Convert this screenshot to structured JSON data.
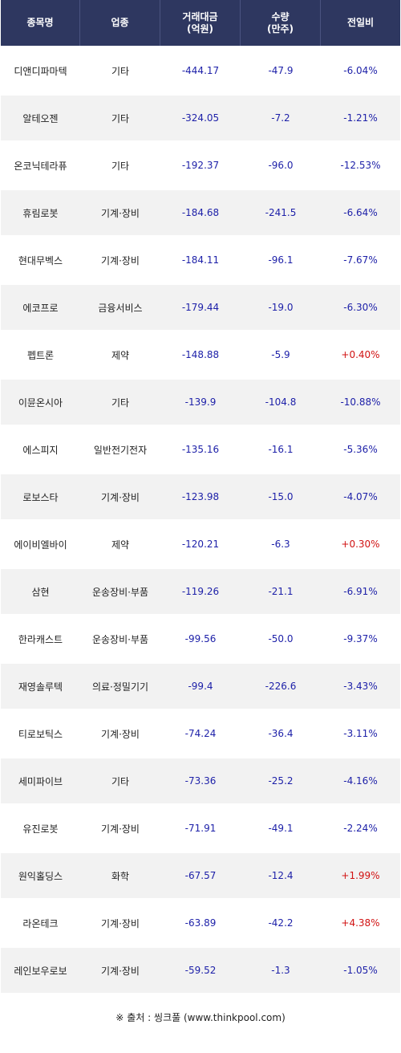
{
  "header": {
    "col_name": "종목명",
    "col_sector": "업종",
    "col_amount_line1": "거래대금",
    "col_amount_line2": "(억원)",
    "col_volume_line1": "수량",
    "col_volume_line2": "(만주)",
    "col_change": "전일비"
  },
  "colors": {
    "header_bg": "#2e3760",
    "negative": "#1c1fa8",
    "positive": "#d11212",
    "row_alt": "#f2f2f2"
  },
  "rows": [
    {
      "name": "디앤디파마텍",
      "sector": "기타",
      "amount": "-444.17",
      "volume": "-47.9",
      "change": "-6.04%",
      "dir": "neg"
    },
    {
      "name": "알테오젠",
      "sector": "기타",
      "amount": "-324.05",
      "volume": "-7.2",
      "change": "-1.21%",
      "dir": "neg"
    },
    {
      "name": "온코닉테라퓨",
      "sector": "기타",
      "amount": "-192.37",
      "volume": "-96.0",
      "change": "-12.53%",
      "dir": "neg"
    },
    {
      "name": "휴림로봇",
      "sector": "기계·장비",
      "amount": "-184.68",
      "volume": "-241.5",
      "change": "-6.64%",
      "dir": "neg"
    },
    {
      "name": "현대무벡스",
      "sector": "기계·장비",
      "amount": "-184.11",
      "volume": "-96.1",
      "change": "-7.67%",
      "dir": "neg"
    },
    {
      "name": "에코프로",
      "sector": "금융서비스",
      "amount": "-179.44",
      "volume": "-19.0",
      "change": "-6.30%",
      "dir": "neg"
    },
    {
      "name": "펩트론",
      "sector": "제약",
      "amount": "-148.88",
      "volume": "-5.9",
      "change": "+0.40%",
      "dir": "pos"
    },
    {
      "name": "이뮨온시아",
      "sector": "기타",
      "amount": "-139.9",
      "volume": "-104.8",
      "change": "-10.88%",
      "dir": "neg"
    },
    {
      "name": "에스피지",
      "sector": "일반전기전자",
      "amount": "-135.16",
      "volume": "-16.1",
      "change": "-5.36%",
      "dir": "neg"
    },
    {
      "name": "로보스타",
      "sector": "기계·장비",
      "amount": "-123.98",
      "volume": "-15.0",
      "change": "-4.07%",
      "dir": "neg"
    },
    {
      "name": "에이비엘바이",
      "sector": "제약",
      "amount": "-120.21",
      "volume": "-6.3",
      "change": "+0.30%",
      "dir": "pos"
    },
    {
      "name": "삼현",
      "sector": "운송장비·부품",
      "amount": "-119.26",
      "volume": "-21.1",
      "change": "-6.91%",
      "dir": "neg"
    },
    {
      "name": "한라캐스트",
      "sector": "운송장비·부품",
      "amount": "-99.56",
      "volume": "-50.0",
      "change": "-9.37%",
      "dir": "neg"
    },
    {
      "name": "재영솔루텍",
      "sector": "의료·정밀기기",
      "amount": "-99.4",
      "volume": "-226.6",
      "change": "-3.43%",
      "dir": "neg"
    },
    {
      "name": "티로보틱스",
      "sector": "기계·장비",
      "amount": "-74.24",
      "volume": "-36.4",
      "change": "-3.11%",
      "dir": "neg"
    },
    {
      "name": "세미파이브",
      "sector": "기타",
      "amount": "-73.36",
      "volume": "-25.2",
      "change": "-4.16%",
      "dir": "neg"
    },
    {
      "name": "유진로봇",
      "sector": "기계·장비",
      "amount": "-71.91",
      "volume": "-49.1",
      "change": "-2.24%",
      "dir": "neg"
    },
    {
      "name": "원익홀딩스",
      "sector": "화학",
      "amount": "-67.57",
      "volume": "-12.4",
      "change": "+1.99%",
      "dir": "pos"
    },
    {
      "name": "라온테크",
      "sector": "기계·장비",
      "amount": "-63.89",
      "volume": "-42.2",
      "change": "+4.38%",
      "dir": "pos"
    },
    {
      "name": "레인보우로보",
      "sector": "기계·장비",
      "amount": "-59.52",
      "volume": "-1.3",
      "change": "-1.05%",
      "dir": "neg"
    }
  ],
  "source": {
    "mark": "※",
    "text": "출처 : 씽크풀 (www.thinkpool.com)"
  }
}
